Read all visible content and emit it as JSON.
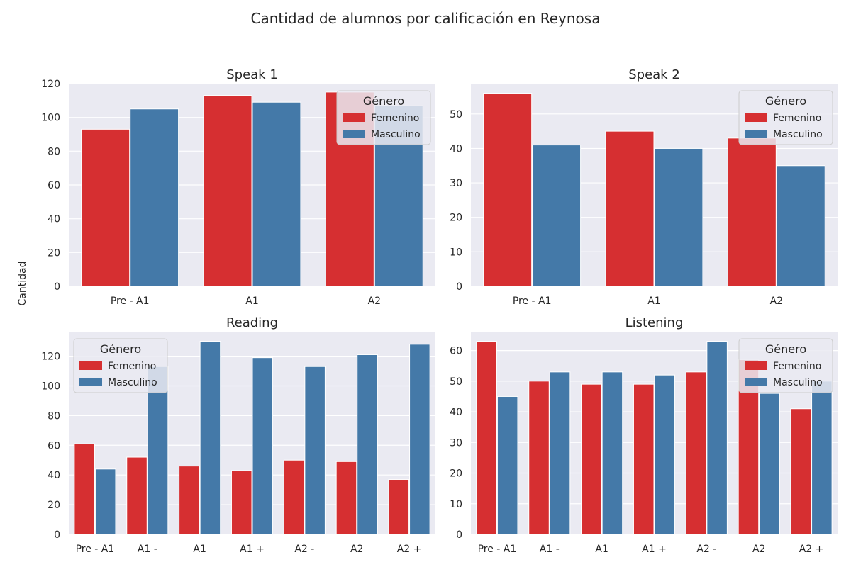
{
  "figure": {
    "title": "Cantidad de alumnos por calificación en Reynosa",
    "ylabel": "Cantidad"
  },
  "palette": {
    "Femenino": "#d62f31",
    "Masculino": "#4479a8",
    "plot_bg": "#eaeaf2",
    "grid": "#ffffff"
  },
  "chart_data": [
    {
      "type": "bar",
      "title": "Speak 1",
      "categories": [
        "Pre - A1",
        "A1",
        "A2"
      ],
      "series": [
        {
          "name": "Femenino",
          "values": [
            93,
            113,
            115
          ]
        },
        {
          "name": "Masculino",
          "values": [
            105,
            109,
            107
          ]
        }
      ],
      "ylim": [
        0,
        120
      ],
      "yticks": [
        0,
        20,
        40,
        60,
        80,
        100,
        120
      ],
      "legend": {
        "title": "Género",
        "placement": "top-right"
      },
      "grid": true
    },
    {
      "type": "bar",
      "title": "Speak 2",
      "categories": [
        "Pre - A1",
        "A1",
        "A2"
      ],
      "series": [
        {
          "name": "Femenino",
          "values": [
            56,
            45,
            43
          ]
        },
        {
          "name": "Masculino",
          "values": [
            41,
            40,
            35
          ]
        }
      ],
      "ylim": [
        0,
        58.8
      ],
      "yticks": [
        0,
        10,
        20,
        30,
        40,
        50
      ],
      "legend": {
        "title": "Género",
        "placement": "top-right"
      },
      "grid": true
    },
    {
      "type": "bar",
      "title": "Reading",
      "categories": [
        "Pre - A1",
        "A1 -",
        "A1",
        "A1 +",
        "A2 -",
        "A2",
        "A2 +"
      ],
      "series": [
        {
          "name": "Femenino",
          "values": [
            61,
            52,
            46,
            43,
            50,
            49,
            37
          ]
        },
        {
          "name": "Masculino",
          "values": [
            44,
            113,
            130,
            119,
            113,
            121,
            128
          ]
        }
      ],
      "ylim": [
        0,
        136.5
      ],
      "yticks": [
        0,
        20,
        40,
        60,
        80,
        100,
        120
      ],
      "legend": {
        "title": "Género",
        "placement": "top-left"
      },
      "grid": true
    },
    {
      "type": "bar",
      "title": "Listening",
      "categories": [
        "Pre - A1",
        "A1 -",
        "A1",
        "A1 +",
        "A2 -",
        "A2",
        "A2 +"
      ],
      "series": [
        {
          "name": "Femenino",
          "values": [
            63,
            50,
            49,
            49,
            53,
            57,
            41
          ]
        },
        {
          "name": "Masculino",
          "values": [
            45,
            53,
            53,
            52,
            63,
            46,
            50
          ]
        }
      ],
      "ylim": [
        0,
        66.15
      ],
      "yticks": [
        0,
        10,
        20,
        30,
        40,
        50,
        60
      ],
      "legend": {
        "title": "Género",
        "placement": "top-right"
      },
      "grid": true
    }
  ]
}
